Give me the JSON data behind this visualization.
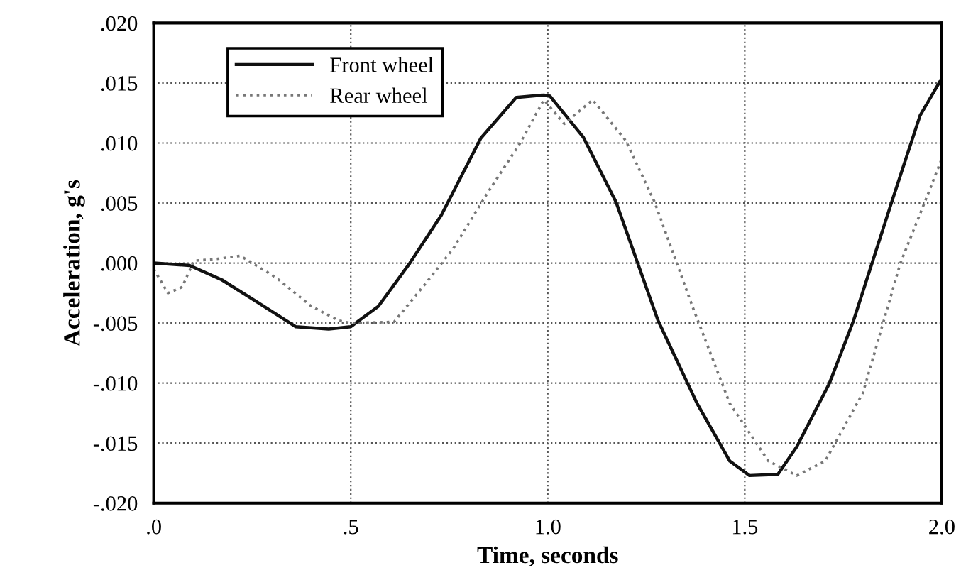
{
  "chart_data": {
    "type": "line",
    "xlabel": "Time, seconds",
    "ylabel": "Acceleration, g's",
    "xlim": [
      0,
      2
    ],
    "ylim": [
      -0.02,
      0.02
    ],
    "xticks": [
      {
        "value": 0,
        "label": ".0"
      },
      {
        "value": 0.5,
        "label": ".5"
      },
      {
        "value": 1.0,
        "label": "1.0"
      },
      {
        "value": 1.5,
        "label": "1.5"
      },
      {
        "value": 2.0,
        "label": "2.0"
      }
    ],
    "yticks": [
      {
        "value": -0.02,
        "label": "-.020"
      },
      {
        "value": -0.015,
        "label": "-.015"
      },
      {
        "value": -0.01,
        "label": "-.010"
      },
      {
        "value": -0.005,
        "label": "-.005"
      },
      {
        "value": 0,
        "label": ".000"
      },
      {
        "value": 0.005,
        "label": ".005"
      },
      {
        "value": 0.01,
        "label": ".010"
      },
      {
        "value": 0.015,
        "label": ".015"
      },
      {
        "value": 0.02,
        "label": ".020"
      }
    ],
    "grid": true,
    "legend": "top left",
    "series": [
      {
        "name": "Front wheel",
        "color": "#111111",
        "line_style": "solid",
        "x": [
          0,
          0.091,
          0.173,
          0.265,
          0.36,
          0.444,
          0.5,
          0.57,
          0.65,
          0.73,
          0.83,
          0.92,
          0.99,
          1.006,
          1.09,
          1.173,
          1.28,
          1.379,
          1.462,
          1.512,
          1.584,
          1.632,
          1.715,
          1.776,
          1.873,
          1.945,
          2.0
        ],
        "values": [
          0.0,
          -0.0002,
          -0.0014,
          -0.0033,
          -0.0053,
          -0.0055,
          -0.0053,
          -0.0036,
          0.0,
          0.004,
          0.0104,
          0.0138,
          0.014,
          0.0139,
          0.0105,
          0.0051,
          -0.0048,
          -0.0117,
          -0.0165,
          -0.0177,
          -0.0176,
          -0.0153,
          -0.01,
          -0.0048,
          0.0051,
          0.0123,
          0.0154
        ]
      },
      {
        "name": "Rear wheel",
        "color": "#777777",
        "line_style": "dotted",
        "x": [
          0,
          0.036,
          0.072,
          0.102,
          0.15,
          0.22,
          0.31,
          0.4,
          0.47,
          0.5,
          0.61,
          0.69,
          0.76,
          0.85,
          0.93,
          0.99,
          1.042,
          1.114,
          1.198,
          1.271,
          1.367,
          1.462,
          1.56,
          1.632,
          1.704,
          1.8,
          1.895,
          1.968,
          2.0
        ],
        "values": [
          -0.0005,
          -0.0025,
          -0.002,
          0.0002,
          0.0003,
          0.0006,
          -0.0012,
          -0.0036,
          -0.0048,
          -0.005,
          -0.0049,
          -0.0017,
          0.0012,
          0.006,
          0.01,
          0.0136,
          0.0116,
          0.0136,
          0.0102,
          0.0051,
          -0.0036,
          -0.0117,
          -0.0165,
          -0.0177,
          -0.0165,
          -0.0108,
          0.0,
          0.006,
          0.0087
        ]
      }
    ]
  }
}
